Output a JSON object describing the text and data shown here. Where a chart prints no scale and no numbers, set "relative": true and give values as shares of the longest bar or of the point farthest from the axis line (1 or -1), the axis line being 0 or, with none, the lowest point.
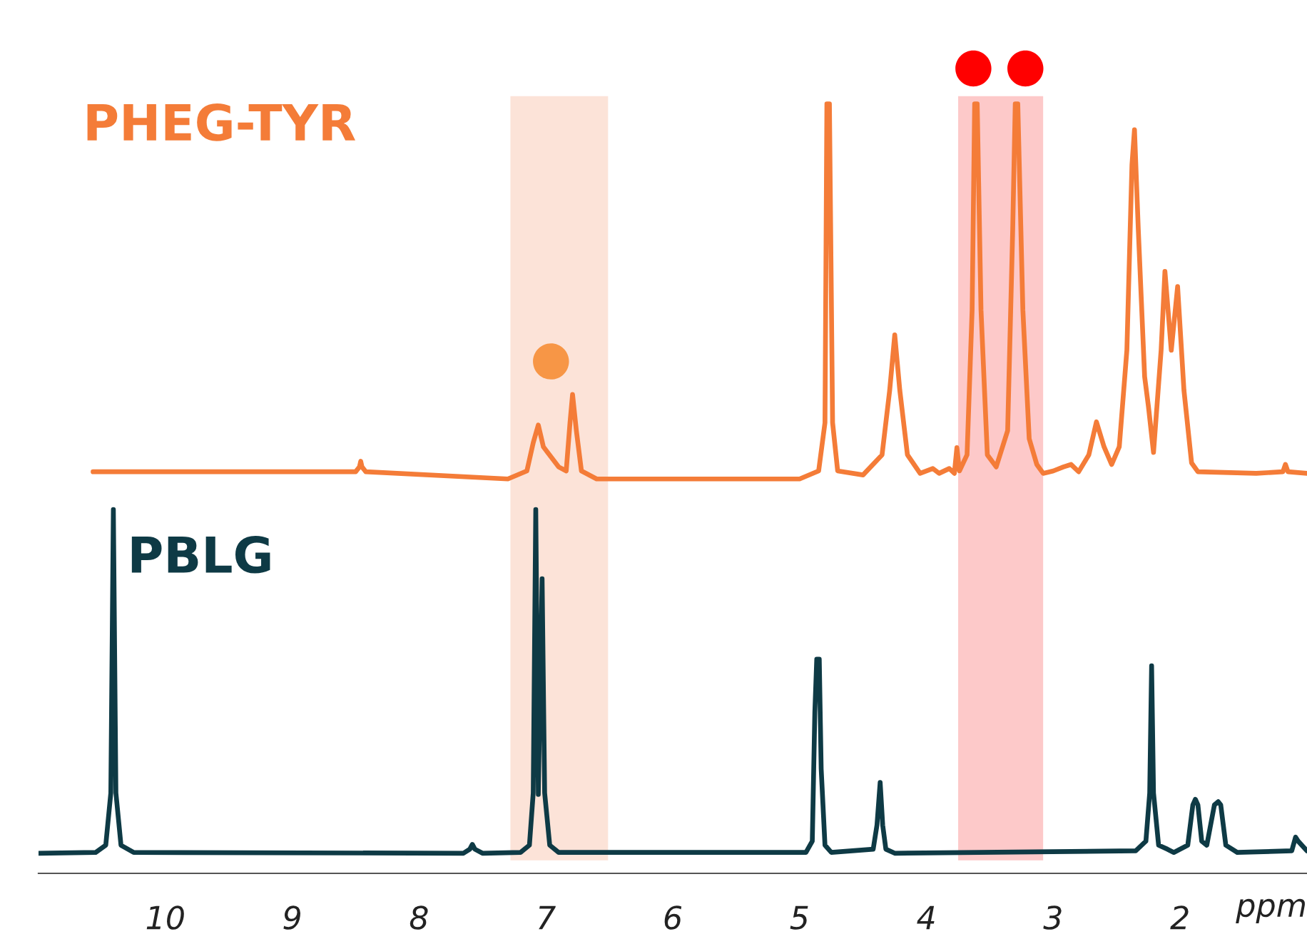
{
  "chart_data": {
    "type": "line",
    "relative": true,
    "xlabel": "ppm",
    "xlim": [
      11.0,
      1.0
    ],
    "xticks": [
      10,
      9,
      8,
      7,
      6,
      5,
      4,
      3,
      2
    ],
    "grid": false,
    "marker": "none",
    "line_style": "solid",
    "bands": [
      {
        "axis": "x",
        "from": 7.28,
        "to": 6.51,
        "color": "#fce3d8"
      },
      {
        "axis": "x",
        "from": 3.75,
        "to": 3.08,
        "color": "#fdc9c9"
      }
    ],
    "series": [
      {
        "name": "PHEG-TYR",
        "color": "#f47c38",
        "x": [
          10.57,
          8.5,
          8.47,
          8.46,
          8.45,
          8.42,
          7.3,
          7.15,
          7.1,
          7.06,
          7.02,
          6.9,
          6.84,
          6.81,
          6.79,
          6.76,
          6.72,
          6.6,
          5.0,
          4.85,
          4.8,
          4.785,
          4.765,
          4.74,
          4.7,
          4.5,
          4.35,
          4.29,
          4.25,
          4.21,
          4.15,
          4.05,
          3.95,
          3.9,
          3.82,
          3.78,
          3.76,
          3.74,
          3.68,
          3.64,
          3.62,
          3.6,
          3.57,
          3.52,
          3.45,
          3.36,
          3.32,
          3.3,
          3.28,
          3.24,
          3.19,
          3.13,
          3.08,
          3.0,
          2.92,
          2.86,
          2.8,
          2.72,
          2.66,
          2.6,
          2.54,
          2.48,
          2.42,
          2.38,
          2.36,
          2.33,
          2.28,
          2.25,
          2.21,
          2.15,
          2.12,
          2.07,
          2.02,
          1.97,
          1.91,
          1.86,
          1.4,
          1.19,
          1.17,
          1.15,
          1.0
        ],
        "values": [
          0.499,
          0.499,
          0.505,
          0.512,
          0.505,
          0.499,
          0.49,
          0.5,
          0.535,
          0.557,
          0.53,
          0.505,
          0.5,
          0.56,
          0.595,
          0.55,
          0.5,
          0.49,
          0.49,
          0.5,
          0.56,
          0.956,
          0.956,
          0.56,
          0.5,
          0.495,
          0.52,
          0.6,
          0.669,
          0.6,
          0.52,
          0.497,
          0.503,
          0.497,
          0.503,
          0.497,
          0.529,
          0.5,
          0.52,
          0.7,
          0.956,
          0.956,
          0.7,
          0.52,
          0.505,
          0.55,
          0.8,
          0.956,
          0.956,
          0.7,
          0.54,
          0.508,
          0.497,
          0.5,
          0.505,
          0.508,
          0.499,
          0.52,
          0.561,
          0.53,
          0.508,
          0.53,
          0.65,
          0.88,
          0.924,
          0.8,
          0.617,
          0.58,
          0.523,
          0.65,
          0.748,
          0.65,
          0.729,
          0.6,
          0.51,
          0.499,
          0.497,
          0.499,
          0.508,
          0.499,
          0.497
        ]
      },
      {
        "name": "PBLG",
        "color": "#0e3a45",
        "x": [
          11.0,
          10.55,
          10.47,
          10.43,
          10.41,
          10.39,
          10.35,
          10.25,
          7.65,
          7.6,
          7.58,
          7.56,
          7.5,
          7.2,
          7.13,
          7.1,
          7.08,
          7.06,
          7.03,
          7.01,
          6.97,
          6.9,
          4.95,
          4.9,
          4.88,
          4.865,
          4.845,
          4.83,
          4.8,
          4.75,
          4.42,
          4.39,
          4.365,
          4.345,
          4.32,
          4.25,
          2.35,
          2.27,
          2.24,
          2.225,
          2.21,
          2.17,
          2.1,
          2.05,
          1.94,
          1.9,
          1.88,
          1.86,
          1.83,
          1.79,
          1.73,
          1.7,
          1.68,
          1.64,
          1.55,
          1.12,
          1.09,
          1.07,
          1.0
        ],
        "values": [
          0.025,
          0.026,
          0.035,
          0.1,
          0.452,
          0.1,
          0.035,
          0.026,
          0.025,
          0.03,
          0.036,
          0.03,
          0.025,
          0.026,
          0.035,
          0.1,
          0.452,
          0.098,
          0.366,
          0.1,
          0.035,
          0.026,
          0.026,
          0.04,
          0.2,
          0.266,
          0.266,
          0.13,
          0.035,
          0.026,
          0.03,
          0.06,
          0.113,
          0.06,
          0.03,
          0.025,
          0.028,
          0.04,
          0.1,
          0.258,
          0.1,
          0.035,
          0.03,
          0.026,
          0.035,
          0.085,
          0.092,
          0.085,
          0.04,
          0.035,
          0.085,
          0.089,
          0.085,
          0.035,
          0.026,
          0.028,
          0.045,
          0.04,
          0.028
        ]
      },
      {
        "type": "scatter",
        "marker": "circle",
        "color": "#f79646",
        "x": [
          6.96
        ],
        "values": [
          0.636
        ]
      },
      {
        "type": "scatter",
        "marker": "circle",
        "color": "#ff0000",
        "x": [
          3.63,
          3.22
        ],
        "values": [
          1,
          1
        ]
      }
    ]
  }
}
